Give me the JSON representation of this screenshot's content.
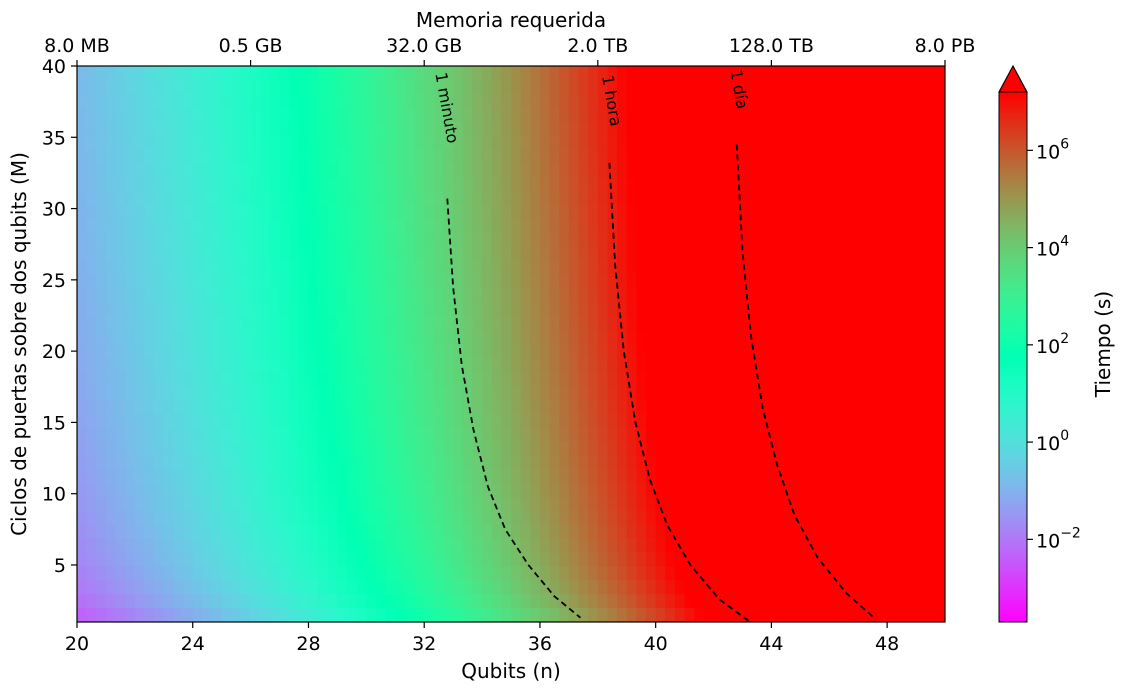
{
  "chart_data": {
    "type": "heatmap",
    "xlabel": "Qubits (n)",
    "ylabel": "Ciclos de puertas sobre dos qubits (M)",
    "top_xlabel": "Memoria requerida",
    "colorbar_label": "Tiempo (s)",
    "colormap": "rainbow",
    "xlim": [
      20,
      50
    ],
    "ylim": [
      1,
      40
    ],
    "x_ticks": [
      20,
      24,
      28,
      32,
      36,
      40,
      44,
      48
    ],
    "x_tick_labels": [
      "20",
      "24",
      "28",
      "32",
      "36",
      "40",
      "44",
      "48"
    ],
    "y_ticks": [
      5,
      10,
      15,
      20,
      25,
      30,
      35,
      40
    ],
    "y_tick_labels": [
      "5",
      "10",
      "15",
      "20",
      "25",
      "30",
      "35",
      "40"
    ],
    "top_ticks": [
      20,
      26,
      32,
      38,
      44,
      50
    ],
    "top_tick_labels": [
      "8.0 MB",
      "0.5 GB",
      "32.0 GB",
      "2.0 TB",
      "128.0 TB",
      "8.0 PB"
    ],
    "colorbar": {
      "scale": "log",
      "log_min": -3.7,
      "log_max": 7.2,
      "ticks": [
        -2,
        0,
        2,
        4,
        6
      ],
      "tick_labels": [
        {
          "base": "10",
          "exp": "−2"
        },
        {
          "base": "10",
          "exp": "0"
        },
        {
          "base": "10",
          "exp": "2"
        },
        {
          "base": "10",
          "exp": "4"
        },
        {
          "base": "10",
          "exp": "6"
        }
      ],
      "extend": "max"
    },
    "contours": [
      {
        "label": "1 minuto",
        "level_seconds": 60,
        "points": [
          [
            32.8,
            30.7
          ],
          [
            33.0,
            24.5
          ],
          [
            33.3,
            19.0
          ],
          [
            33.7,
            14.5
          ],
          [
            34.2,
            10.5
          ],
          [
            34.8,
            7.5
          ],
          [
            35.6,
            5.0
          ],
          [
            36.5,
            2.8
          ],
          [
            37.4,
            1.3
          ]
        ],
        "label_at": [
          32.6,
          37.0
        ]
      },
      {
        "label": "1 hora",
        "level_seconds": 3600,
        "points": [
          [
            38.4,
            33.2
          ],
          [
            38.6,
            26.0
          ],
          [
            38.9,
            20.0
          ],
          [
            39.3,
            15.0
          ],
          [
            39.8,
            11.0
          ],
          [
            40.4,
            7.8
          ],
          [
            41.2,
            5.0
          ],
          [
            42.2,
            2.6
          ],
          [
            43.2,
            1.1
          ]
        ],
        "label_at": [
          38.3,
          37.5
        ]
      },
      {
        "label": "1 día",
        "level_seconds": 86400,
        "points": [
          [
            42.8,
            34.5
          ],
          [
            43.0,
            27.0
          ],
          [
            43.3,
            21.0
          ],
          [
            43.7,
            16.0
          ],
          [
            44.2,
            12.0
          ],
          [
            44.8,
            8.5
          ],
          [
            45.6,
            5.5
          ],
          [
            46.6,
            3.0
          ],
          [
            47.6,
            1.2
          ]
        ],
        "label_at": [
          42.7,
          38.3
        ]
      }
    ]
  }
}
